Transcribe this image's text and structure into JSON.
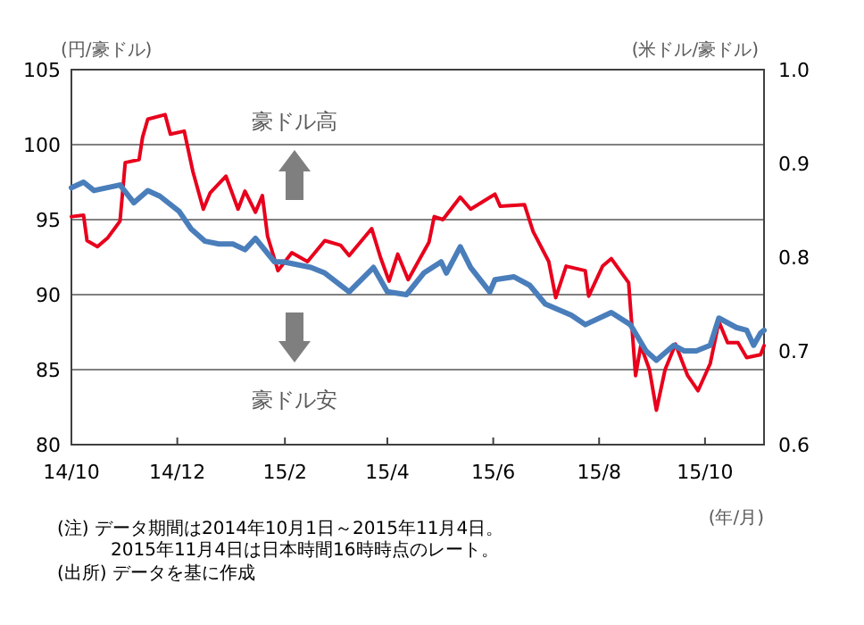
{
  "chart_data": {
    "type": "line",
    "ylabel": "(円/豪ドル)",
    "y2label": "(米ドル/豪ドル)",
    "xlabel": "(年/月)",
    "xlim": [
      "2014-10-01",
      "2015-11-04"
    ],
    "xticks": [
      {
        "value": "2014-10-01",
        "label": "14/10"
      },
      {
        "value": "2014-12-01",
        "label": "14/12"
      },
      {
        "value": "2015-02-01",
        "label": "15/2"
      },
      {
        "value": "2015-04-01",
        "label": "15/4"
      },
      {
        "value": "2015-06-01",
        "label": "15/6"
      },
      {
        "value": "2015-08-01",
        "label": "15/8"
      },
      {
        "value": "2015-10-01",
        "label": "15/10"
      }
    ],
    "ylim": [
      80,
      105
    ],
    "yticks": [
      80,
      85,
      90,
      95,
      100,
      105
    ],
    "y2lim": [
      0.6,
      1.0
    ],
    "y2ticks": [
      0.6,
      0.7,
      0.8,
      0.9,
      {
        "value": 1.0,
        "label": "1.0"
      }
    ],
    "grid": "y",
    "annotations": [
      "豪ドル高",
      "豪ドル安",
      "(注) データ期間は2014年10月1日～2015年11月4日。",
      "2015年11月4日は日本時間16時時点のレート。",
      "(出所) データを基に作成"
    ],
    "series": [
      {
        "color": "#e8001c",
        "x": [
          "2014-10-01",
          "2014-10-08",
          "2014-10-10",
          "2014-10-16",
          "2014-10-22",
          "2014-10-29",
          "2014-11-01",
          "2014-11-09",
          "2014-11-11",
          "2014-11-14",
          "2014-11-24",
          "2014-11-27",
          "2014-12-05",
          "2014-12-10",
          "2014-12-16",
          "2014-12-20",
          "2014-12-29",
          "2015-01-05",
          "2015-01-09",
          "2015-01-15",
          "2015-01-19",
          "2015-01-22",
          "2015-01-28",
          "2015-02-05",
          "2015-02-14",
          "2015-02-24",
          "2015-03-05",
          "2015-03-10",
          "2015-03-23",
          "2015-03-28",
          "2015-04-02",
          "2015-04-07",
          "2015-04-13",
          "2015-04-25",
          "2015-04-28",
          "2015-05-03",
          "2015-05-13",
          "2015-05-19",
          "2015-06-02",
          "2015-06-05",
          "2015-06-19",
          "2015-06-24",
          "2015-07-03",
          "2015-07-07",
          "2015-07-13",
          "2015-07-24",
          "2015-07-26",
          "2015-08-03",
          "2015-08-08",
          "2015-08-18",
          "2015-08-22",
          "2015-08-25",
          "2015-08-30",
          "2015-09-03",
          "2015-09-08",
          "2015-09-14",
          "2015-09-21",
          "2015-09-27",
          "2015-10-04",
          "2015-10-09",
          "2015-10-14",
          "2015-10-20",
          "2015-10-25",
          "2015-11-02",
          "2015-11-04"
        ],
        "values": [
          95.2,
          95.3,
          93.6,
          93.2,
          93.8,
          94.9,
          98.8,
          99.0,
          100.5,
          101.7,
          102.0,
          100.7,
          100.9,
          98.2,
          95.7,
          96.8,
          97.9,
          95.7,
          96.9,
          95.5,
          96.6,
          93.9,
          91.6,
          92.8,
          92.2,
          93.6,
          93.3,
          92.6,
          94.4,
          92.5,
          90.9,
          92.7,
          91.0,
          93.5,
          95.2,
          95.0,
          96.5,
          95.7,
          96.7,
          95.9,
          96.0,
          94.2,
          92.2,
          89.8,
          91.9,
          91.6,
          89.9,
          91.9,
          92.4,
          90.8,
          84.6,
          86.6,
          85.0,
          82.3,
          85.0,
          86.7,
          84.6,
          83.6,
          85.4,
          88.2,
          86.8,
          86.8,
          85.8,
          86.0,
          86.6
        ]
      },
      {
        "color": "#4a7ebb",
        "axis": "y2",
        "x": [
          "2014-10-01",
          "2014-10-08",
          "2014-10-14",
          "2014-10-29",
          "2014-11-06",
          "2014-11-14",
          "2014-11-21",
          "2014-12-02",
          "2014-12-09",
          "2014-12-17",
          "2014-12-25",
          "2015-01-02",
          "2015-01-09",
          "2015-01-15",
          "2015-01-26",
          "2015-01-31",
          "2015-02-16",
          "2015-02-24",
          "2015-03-10",
          "2015-03-24",
          "2015-04-01",
          "2015-04-12",
          "2015-04-22",
          "2015-05-02",
          "2015-05-05",
          "2015-05-13",
          "2015-05-19",
          "2015-05-30",
          "2015-06-02",
          "2015-06-13",
          "2015-06-22",
          "2015-07-01",
          "2015-07-16",
          "2015-07-24",
          "2015-08-08",
          "2015-08-19",
          "2015-08-28",
          "2015-09-03",
          "2015-09-13",
          "2015-09-19",
          "2015-09-26",
          "2015-10-04",
          "2015-10-09",
          "2015-10-19",
          "2015-10-25",
          "2015-10-29",
          "2015-11-02",
          "2015-11-04"
        ],
        "values": [
          0.874,
          0.88,
          0.871,
          0.877,
          0.858,
          0.871,
          0.865,
          0.849,
          0.83,
          0.817,
          0.814,
          0.814,
          0.808,
          0.82,
          0.795,
          0.795,
          0.789,
          0.783,
          0.763,
          0.789,
          0.763,
          0.76,
          0.783,
          0.795,
          0.783,
          0.811,
          0.789,
          0.763,
          0.776,
          0.779,
          0.77,
          0.75,
          0.738,
          0.728,
          0.741,
          0.728,
          0.7,
          0.69,
          0.706,
          0.7,
          0.7,
          0.706,
          0.735,
          0.725,
          0.722,
          0.706,
          0.719,
          0.722
        ]
      }
    ]
  }
}
